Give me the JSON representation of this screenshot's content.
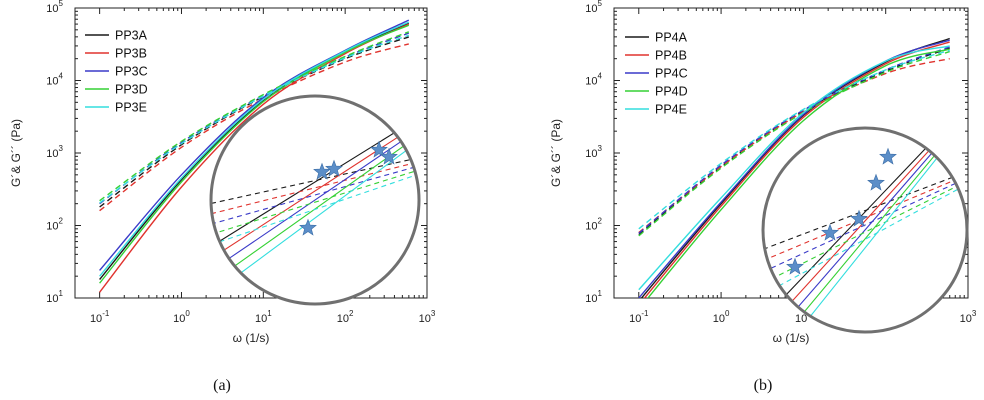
{
  "colors": {
    "A": "#1a1a1a",
    "B": "#e0332e",
    "C": "#3a3ac8",
    "D": "#35d135",
    "E": "#33dede",
    "inset_circle": "#707070",
    "star": "#5b8ec8"
  },
  "chart_data": [
    {
      "type": "line",
      "caption": "(a)",
      "xlabel": "ω (1/s)",
      "ylabel": "G´& G´´ (Pa)",
      "xscale": "log",
      "yscale": "log",
      "xlim": [
        0.05,
        1000
      ],
      "ylim": [
        10,
        100000
      ],
      "x_ticks": [
        {
          "value": 0.1,
          "mant": "10",
          "exp": "-1"
        },
        {
          "value": 1,
          "mant": "10",
          "exp": "0"
        },
        {
          "value": 10,
          "mant": "10",
          "exp": "1"
        },
        {
          "value": 100,
          "mant": "10",
          "exp": "2"
        },
        {
          "value": 1000,
          "mant": "10",
          "exp": "3"
        }
      ],
      "y_ticks": [
        {
          "value": 10,
          "mant": "10",
          "exp": "1"
        },
        {
          "value": 100,
          "mant": "10",
          "exp": "2"
        },
        {
          "value": 1000,
          "mant": "10",
          "exp": "3"
        },
        {
          "value": 10000,
          "mant": "10",
          "exp": "4"
        },
        {
          "value": 100000,
          "mant": "10",
          "exp": "5"
        }
      ],
      "legend_position": "top-left",
      "line_styles": {
        "solid": "G´",
        "dashed": "G´´"
      },
      "series": [
        {
          "name": "PP3A",
          "color_key": "A",
          "x": [
            0.1,
            1,
            10,
            100,
            600
          ],
          "g_prime": [
            18,
            430,
            5300,
            25000,
            62000
          ],
          "g_double_prime": [
            180,
            1300,
            6000,
            20000,
            40000
          ]
        },
        {
          "name": "PP3B",
          "color_key": "B",
          "x": [
            0.1,
            1,
            10,
            100,
            600
          ],
          "g_prime": [
            12,
            340,
            4700,
            23500,
            60000
          ],
          "g_double_prime": [
            160,
            1200,
            5600,
            18000,
            32000
          ]
        },
        {
          "name": "PP3C",
          "color_key": "C",
          "x": [
            0.1,
            1,
            10,
            100,
            600
          ],
          "g_prime": [
            24,
            500,
            5800,
            26000,
            68000
          ],
          "g_double_prime": [
            200,
            1400,
            6200,
            21000,
            45000
          ]
        },
        {
          "name": "PP3D",
          "color_key": "D",
          "x": [
            0.1,
            1,
            10,
            100,
            600
          ],
          "g_prime": [
            16,
            400,
            5100,
            24500,
            58000
          ],
          "g_double_prime": [
            220,
            1450,
            6400,
            21500,
            47000
          ]
        },
        {
          "name": "PP3E",
          "color_key": "E",
          "x": [
            0.1,
            1,
            10,
            100,
            600
          ],
          "g_prime": [
            20,
            450,
            5500,
            25500,
            64000
          ],
          "g_double_prime": [
            205,
            1350,
            6100,
            20500,
            42000
          ]
        }
      ]
    },
    {
      "type": "line",
      "caption": "(b)",
      "xlabel": "ω (1/s)",
      "ylabel": "G´& G´´ (Pa)",
      "xscale": "log",
      "yscale": "log",
      "xlim": [
        0.05,
        1000
      ],
      "ylim": [
        10,
        100000
      ],
      "x_ticks": [
        {
          "value": 0.1,
          "mant": "10",
          "exp": "-1"
        },
        {
          "value": 1,
          "mant": "10",
          "exp": "0"
        },
        {
          "value": 10,
          "mant": "10",
          "exp": "1"
        },
        {
          "value": 100,
          "mant": "10",
          "exp": "2"
        },
        {
          "value": 1000,
          "mant": "10",
          "exp": "3"
        }
      ],
      "y_ticks": [
        {
          "value": 10,
          "mant": "10",
          "exp": "1"
        },
        {
          "value": 100,
          "mant": "10",
          "exp": "2"
        },
        {
          "value": 1000,
          "mant": "10",
          "exp": "3"
        },
        {
          "value": 10000,
          "mant": "10",
          "exp": "4"
        },
        {
          "value": 100000,
          "mant": "10",
          "exp": "5"
        }
      ],
      "legend_position": "top-left",
      "line_styles": {
        "solid": "G´",
        "dashed": "G´´"
      },
      "series": [
        {
          "name": "PP4A",
          "color_key": "A",
          "x": [
            0.1,
            1,
            10,
            100,
            600
          ],
          "g_prime": [
            9,
            200,
            3300,
            18000,
            38000
          ],
          "g_double_prime": [
            75,
            650,
            3800,
            13500,
            28000
          ]
        },
        {
          "name": "PP4B",
          "color_key": "B",
          "x": [
            0.1,
            1,
            10,
            100,
            600
          ],
          "g_prime": [
            8,
            185,
            3100,
            17000,
            34000
          ],
          "g_double_prime": [
            80,
            650,
            3700,
            12500,
            20000
          ]
        },
        {
          "name": "PP4C",
          "color_key": "C",
          "x": [
            0.1,
            1,
            10,
            100,
            600
          ],
          "g_prime": [
            10,
            210,
            3400,
            18500,
            36000
          ],
          "g_double_prime": [
            78,
            680,
            3900,
            14000,
            29000
          ]
        },
        {
          "name": "PP4D",
          "color_key": "D",
          "x": [
            0.1,
            1,
            10,
            100,
            600
          ],
          "g_prime": [
            7,
            165,
            2800,
            16000,
            27000
          ],
          "g_double_prime": [
            72,
            620,
            3600,
            13000,
            25000
          ]
        },
        {
          "name": "PP4E",
          "color_key": "E",
          "x": [
            0.1,
            1,
            10,
            100,
            600
          ],
          "g_prime": [
            13,
            240,
            3600,
            18500,
            30000
          ],
          "g_double_prime": [
            90,
            720,
            4000,
            14000,
            26000
          ]
        }
      ]
    }
  ]
}
